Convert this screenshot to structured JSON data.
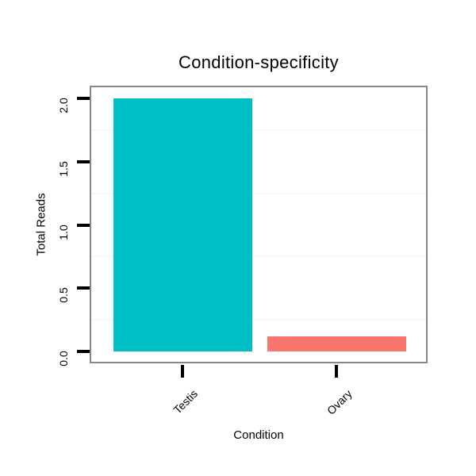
{
  "chart_data": {
    "type": "bar",
    "title": "Condition-specificity",
    "xlabel": "Condition",
    "ylabel": "Total Reads",
    "categories": [
      "Testis",
      "Ovary"
    ],
    "values": [
      2.0,
      0.12
    ],
    "bar_colors": [
      "#00BFC4",
      "#F8766D"
    ],
    "ylim": [
      -0.08,
      2.09
    ],
    "yticks": [
      {
        "value": 0.0,
        "label": "0.0"
      },
      {
        "value": 0.5,
        "label": "0.5"
      },
      {
        "value": 1.0,
        "label": "1.0"
      },
      {
        "value": 1.5,
        "label": "1.5"
      },
      {
        "value": 2.0,
        "label": "2.0"
      }
    ],
    "minor_gridlines": [
      0.25,
      0.75,
      1.25,
      1.75
    ],
    "grid": "minor-horizontal-only",
    "legend": "none",
    "x_tick_label_rotation_deg": 45,
    "y_tick_label_rotation_deg": 90,
    "colors": {
      "background": "#ffffff",
      "plot_background": "#ffffff",
      "frame_border": "#888888",
      "tick": "#000000",
      "text": "#000000",
      "minor_gridline": "#f7f7f7"
    }
  }
}
